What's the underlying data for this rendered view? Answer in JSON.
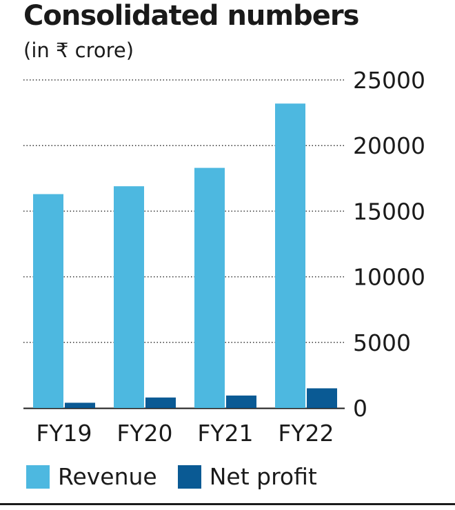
{
  "chart_data": {
    "type": "bar",
    "title": "Consolidated numbers",
    "subtitle": "(in ₹ crore)",
    "categories": [
      "FY19",
      "FY20",
      "FY21",
      "FY22"
    ],
    "series": [
      {
        "name": "Revenue",
        "color": "#4db8e0",
        "values": [
          16300,
          16900,
          18300,
          23200
        ]
      },
      {
        "name": "Net profit",
        "color": "#0a5a94",
        "values": [
          400,
          800,
          950,
          1500
        ]
      }
    ],
    "y_ticks": [
      "25000",
      "20000",
      "15000",
      "10000",
      "5000",
      "0"
    ],
    "y_tick_values": [
      25000,
      20000,
      15000,
      10000,
      5000,
      0
    ],
    "ylim": [
      0,
      25000
    ],
    "y_axis_position": "right",
    "grid": "dotted horizontal",
    "legend_position": "bottom-left"
  }
}
